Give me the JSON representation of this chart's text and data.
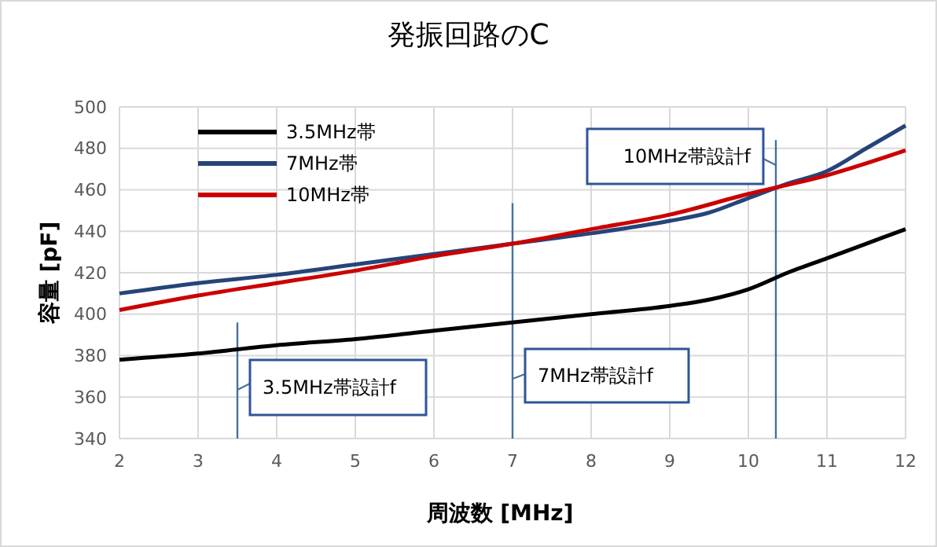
{
  "chart_data": {
    "type": "line",
    "title": "発振回路のC",
    "xlabel": "周波数 [MHz]",
    "ylabel": "容量 [pF]",
    "xlim": [
      2,
      12
    ],
    "xticks": [
      2,
      3,
      4,
      5,
      6,
      7,
      8,
      9,
      10,
      11,
      12
    ],
    "ylim": [
      340,
      500
    ],
    "yticks": [
      340,
      360,
      380,
      400,
      420,
      440,
      460,
      480,
      500
    ],
    "grid": true,
    "legend": "top left",
    "line_style": "solid",
    "marker": "none",
    "series": [
      {
        "name": "3.5MHz帯",
        "color": "#000000",
        "x": [
          2,
          3,
          4,
          5,
          6,
          7,
          8,
          9,
          9.5,
          10,
          10.5,
          11,
          11.5,
          12
        ],
        "values": [
          378,
          381,
          385,
          388,
          392,
          396,
          400,
          404,
          407,
          412,
          420,
          427,
          434,
          441
        ]
      },
      {
        "name": "7MHz帯",
        "color": "#264478",
        "x": [
          2,
          3,
          4,
          5,
          6,
          7,
          8,
          9,
          9.5,
          10,
          10.5,
          11,
          11.5,
          12
        ],
        "values": [
          410,
          415,
          419,
          424,
          429,
          434,
          439,
          445,
          449,
          456,
          463,
          469,
          480,
          491
        ]
      },
      {
        "name": "10MHz帯",
        "color": "#cc0000",
        "x": [
          2,
          3,
          4,
          5,
          6,
          7,
          8,
          9,
          10,
          11,
          12
        ],
        "values": [
          402,
          409,
          415,
          421,
          428,
          434,
          441,
          448,
          458,
          467,
          479
        ]
      }
    ],
    "ref_lines": [
      {
        "axis": "x",
        "value": 3.5,
        "label": "3.5MHz帯設計f",
        "color": "#44719b"
      },
      {
        "axis": "x",
        "value": 7,
        "label": "7MHz帯設計f",
        "color": "#44719b"
      },
      {
        "axis": "x",
        "value": 10.35,
        "label": "10MHz帯設計f",
        "color": "#44719b"
      }
    ]
  }
}
